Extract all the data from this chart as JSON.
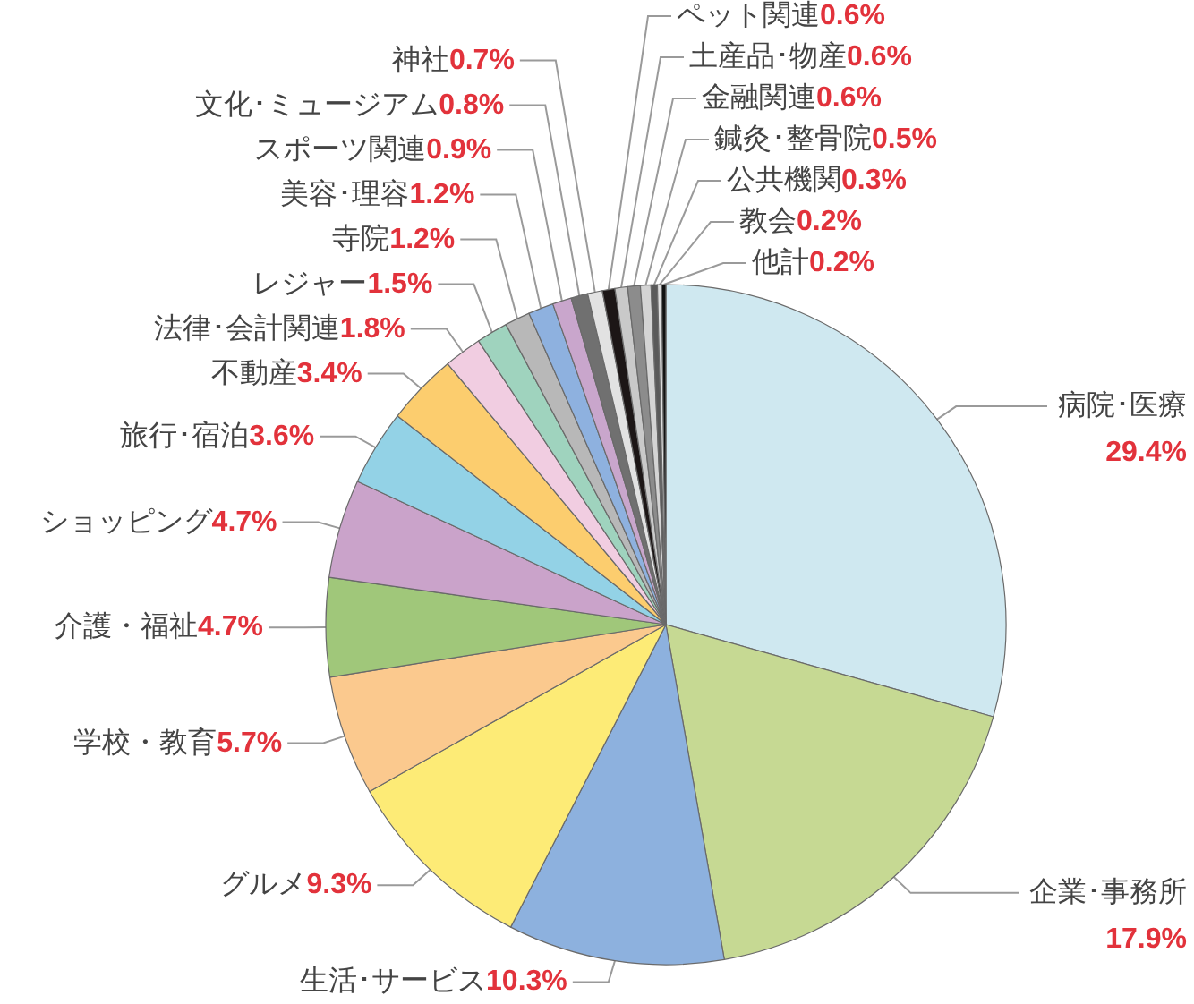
{
  "chart_data": {
    "type": "pie",
    "categories": [
      "病院･医療",
      "企業･事務所",
      "生活･サービス",
      "グルメ",
      "学校・教育",
      "介護・福祉",
      "ショッピング",
      "旅行･宿泊",
      "不動産",
      "法律･会計関連",
      "レジャー",
      "寺院",
      "美容･理容",
      "スポーツ関連",
      "文化･ミュージアム",
      "神社",
      "ペット関連",
      "土産品･物産",
      "金融関連",
      "鍼灸･整骨院",
      "公共機関",
      "教会",
      "他計"
    ],
    "values": [
      29.4,
      17.9,
      10.3,
      9.3,
      5.7,
      4.7,
      4.7,
      3.6,
      3.4,
      1.8,
      1.5,
      1.2,
      1.2,
      0.9,
      0.8,
      0.7,
      0.6,
      0.6,
      0.6,
      0.5,
      0.3,
      0.2,
      0.2
    ],
    "value_labels": [
      "29.4%",
      "17.9%",
      "10.3%",
      "9.3%",
      "5.7%",
      "4.7%",
      "4.7%",
      "3.6%",
      "3.4%",
      "1.8%",
      "1.5%",
      "1.2%",
      "1.2%",
      "0.9%",
      "0.8%",
      "0.7%",
      "0.6%",
      "0.6%",
      "0.6%",
      "0.5%",
      "0.3%",
      "0.2%",
      "0.2%"
    ],
    "colors": [
      "#cfe8f0",
      "#c6d993",
      "#8db1de",
      "#fdeb76",
      "#fbc98e",
      "#a0c77a",
      "#caa3ca",
      "#93d2e6",
      "#fccd6e",
      "#f1cde1",
      "#9fd3be",
      "#b8b8b8",
      "#8eb1df",
      "#c9a6cc",
      "#707070",
      "#e2e2e2",
      "#1c1616",
      "#c9c9c9",
      "#8c8c8c",
      "#d4d4d4",
      "#5a5a5a",
      "#dddddd",
      "#111111"
    ]
  }
}
